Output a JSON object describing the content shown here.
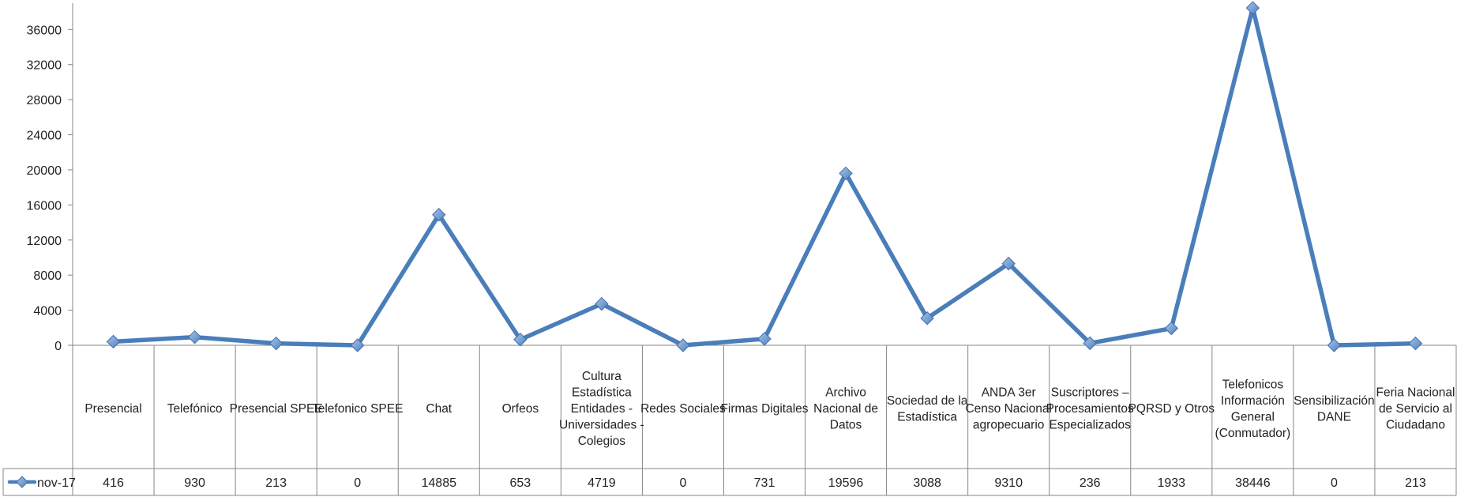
{
  "chart_data": {
    "type": "line",
    "categories": [
      "Presencial",
      "Telefónico",
      "Presencial SPEE",
      "Telefonico SPEE",
      "Chat",
      "Orfeos",
      "Cultura Estadística Entidades - Universidades - Colegios",
      "Redes Sociales",
      "Firmas Digitales",
      "Archivo Nacional de Datos",
      "Sociedad de la Estadística",
      "ANDA 3er Censo Nacional agropecuario",
      "Suscriptores – Procesamientos Especializados",
      "PQRSD y Otros",
      "Telefonicos Información General (Conmutador)",
      "Sensibilización DANE",
      "Feria Nacional de Servicio al Ciudadano"
    ],
    "category_lines": [
      [
        "Presencial"
      ],
      [
        "Telefónico"
      ],
      [
        "Presencial SPEE"
      ],
      [
        "Telefonico SPEE"
      ],
      [
        "Chat"
      ],
      [
        "Orfeos"
      ],
      [
        "Cultura",
        "Estadística",
        "Entidades -",
        "Universidades -",
        "Colegios"
      ],
      [
        "Redes Sociales"
      ],
      [
        "Firmas Digitales"
      ],
      [
        "Archivo",
        "Nacional de",
        "Datos"
      ],
      [
        "Sociedad de la",
        "Estadística"
      ],
      [
        "ANDA 3er",
        "Censo Nacional",
        "agropecuario"
      ],
      [
        "Suscriptores –",
        "Procesamientos",
        "Especializados"
      ],
      [
        "PQRSD y Otros"
      ],
      [
        "Telefonicos",
        "Información",
        "General",
        "(Conmutador)"
      ],
      [
        "Sensibilización",
        "DANE"
      ],
      [
        "Feria Nacional",
        "de Servicio al",
        "Ciudadano"
      ]
    ],
    "series": [
      {
        "name": "nov-17",
        "values": [
          416,
          930,
          213,
          0,
          14885,
          653,
          4719,
          0,
          731,
          19596,
          3088,
          9310,
          236,
          1933,
          38446,
          0,
          213
        ],
        "color": "#4a7ebb"
      }
    ],
    "y_ticks": [
      "0",
      "4000",
      "8000",
      "12000",
      "16000",
      "20000",
      "24000",
      "28000",
      "32000",
      "36000"
    ],
    "ylim": [
      0,
      39000
    ],
    "title": "",
    "xlabel": "",
    "ylabel": "",
    "grid": false,
    "legend": "data-table-left",
    "data_table": true
  }
}
